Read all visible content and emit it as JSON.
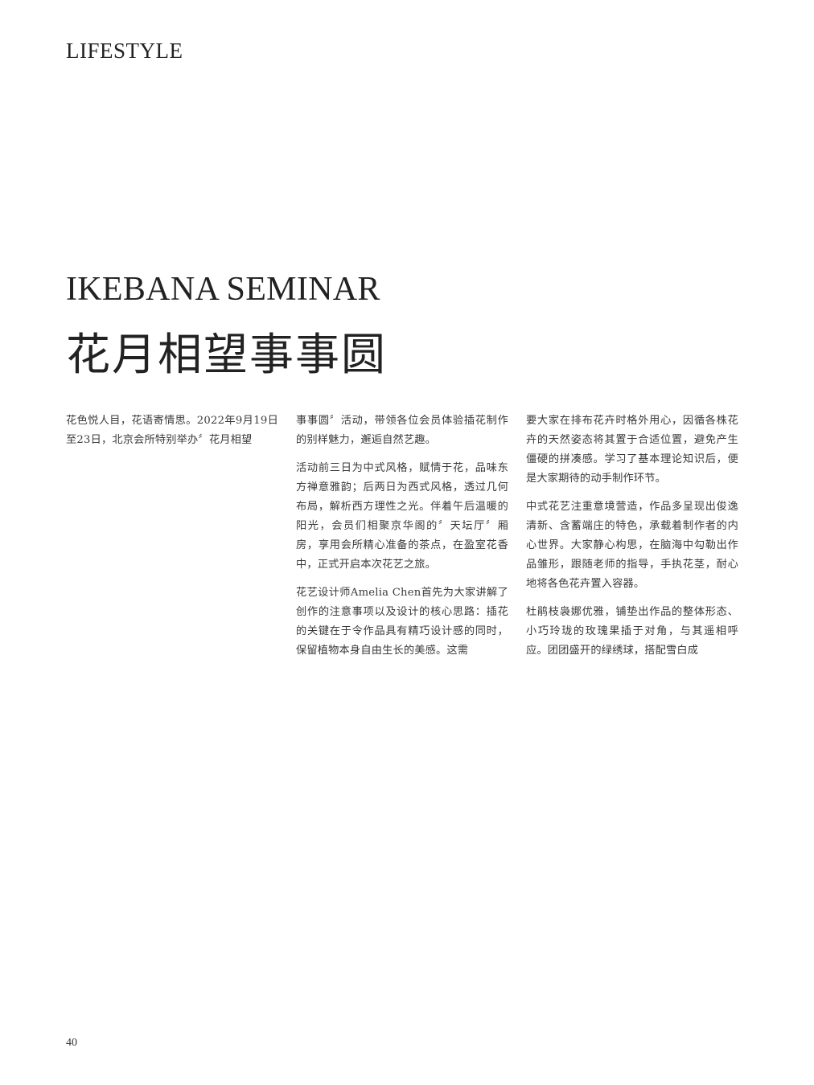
{
  "header": {
    "section": "LIFESTYLE"
  },
  "article": {
    "title_en": "IKEBANA SEMINAR",
    "title_zh": "花月相望事事圆",
    "columns": [
      {
        "paragraphs": [
          "花色悦人目，花语寄情思。2022年9月19日至23日，北京会所特别举办〞花月相望"
        ]
      },
      {
        "paragraphs": [
          "事事圆〞活动，带领各位会员体验插花制作的别样魅力，邂逅自然艺趣。",
          "活动前三日为中式风格，赋情于花，品味东方禅意雅韵；后两日为西式风格，透过几何布局，解析西方理性之光。伴着午后温暖的阳光，会员们相聚京华阁的〞天坛厅〞厢房，享用会所精心准备的茶点，在盈室花香中，正式开启本次花艺之旅。",
          "花艺设计师Amelia Chen首先为大家讲解了创作的注意事项以及设计的核心思路：插花的关键在于令作品具有精巧设计感的同时，保留植物本身自由生长的美感。这需"
        ]
      },
      {
        "paragraphs": [
          "要大家在排布花卉时格外用心，因循各株花卉的天然姿态将其置于合适位置，避免产生僵硬的拼凑感。学习了基本理论知识后，便是大家期待的动手制作环节。",
          "中式花艺注重意境营造，作品多呈现出俊逸清新、含蓄端庄的特色，承载着制作者的内心世界。大家静心构思，在脑海中勾勒出作品雏形，跟随老师的指导，手执花茎，耐心地将各色花卉置入容器。",
          "杜鹃枝袅娜优雅，铺垫出作品的整体形态、小巧玲珑的玫瑰果插于对角，与其遥相呼应。团团盛开的绿绣球，搭配雪白成"
        ]
      }
    ]
  },
  "footer": {
    "page_number": "40"
  }
}
